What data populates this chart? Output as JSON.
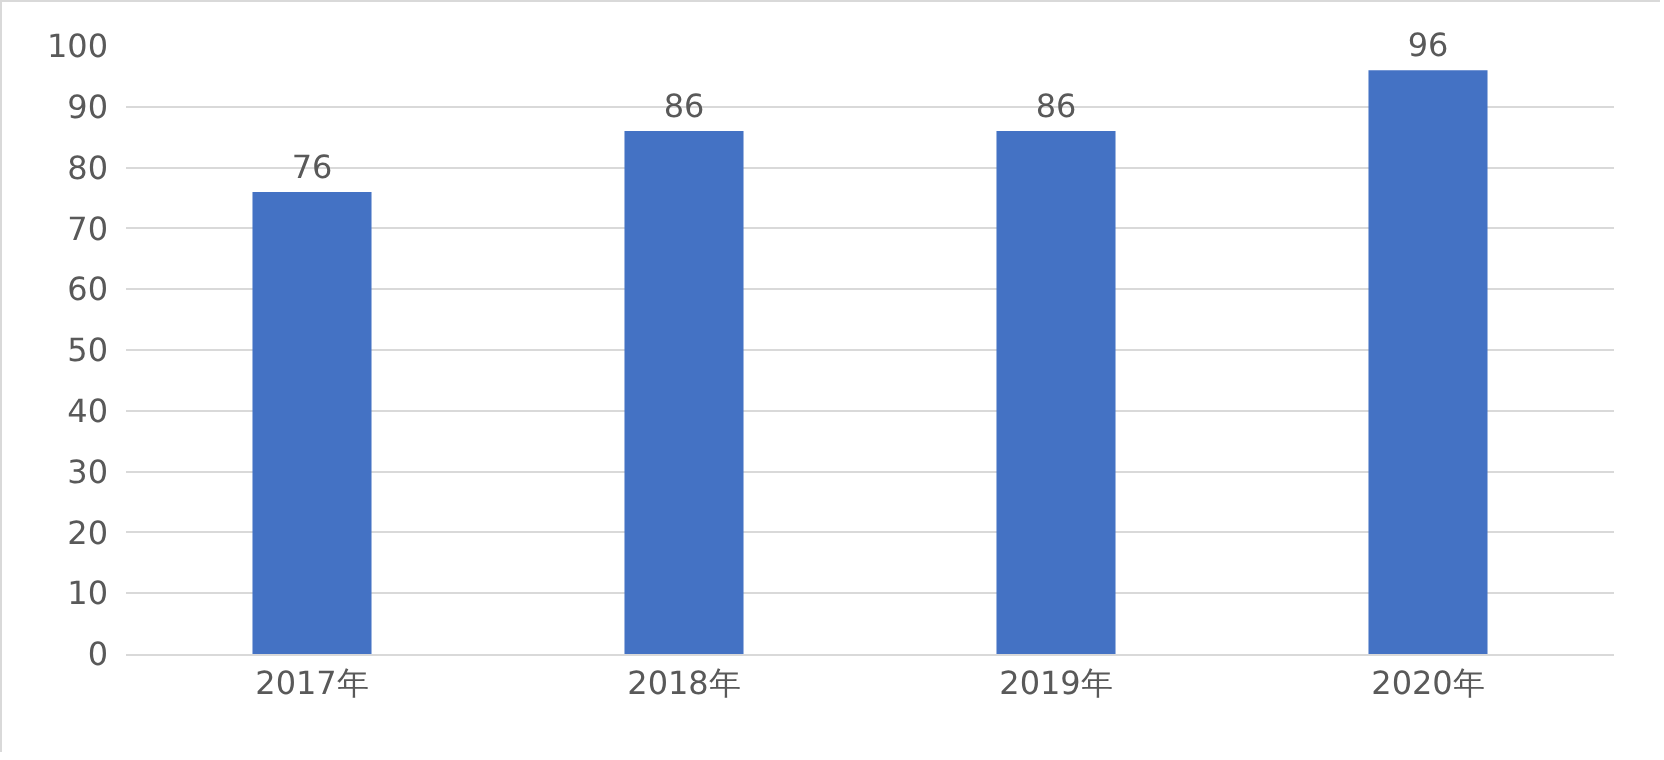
{
  "chart_data": {
    "type": "bar",
    "categories": [
      "2017年",
      "2018年",
      "2019年",
      "2020年"
    ],
    "values": [
      76,
      86,
      86,
      96
    ],
    "color": "#4472c4",
    "ylim": [
      0,
      100
    ],
    "yticks": [
      0,
      10,
      20,
      30,
      40,
      50,
      60,
      70,
      80,
      90,
      100
    ],
    "grid": "y",
    "data_labels": true
  }
}
